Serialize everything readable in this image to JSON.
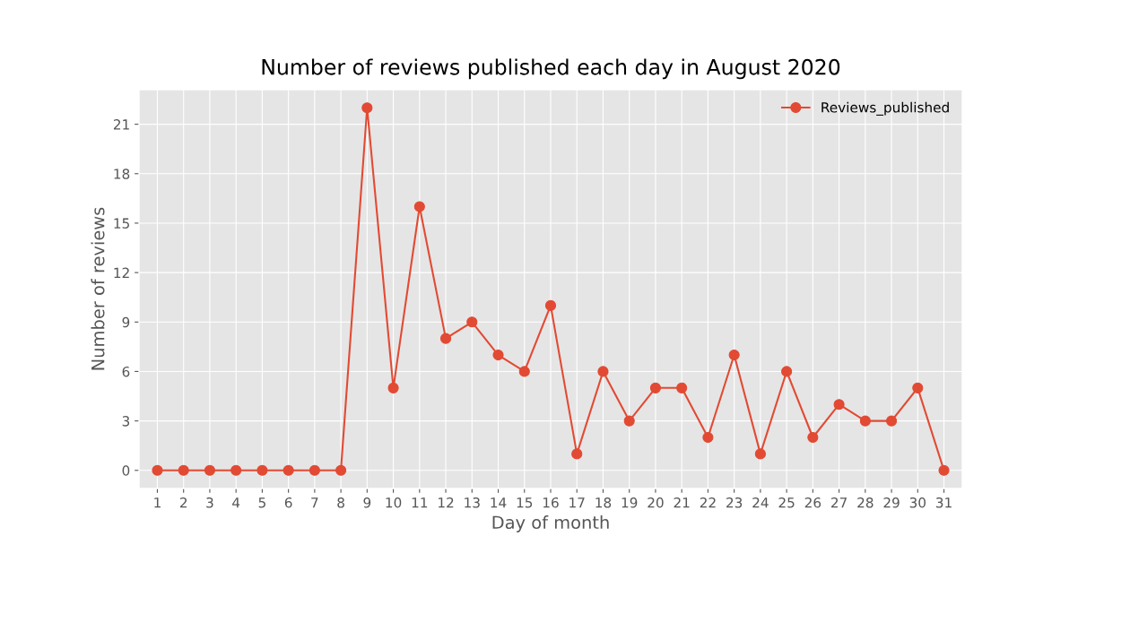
{
  "chart_data": {
    "type": "line",
    "title": "Number of reviews published each day in August 2020",
    "xlabel": "Day of month",
    "ylabel": "Number of reviews",
    "categories": [
      "1",
      "2",
      "3",
      "4",
      "5",
      "6",
      "7",
      "8",
      "9",
      "10",
      "11",
      "12",
      "13",
      "14",
      "15",
      "16",
      "17",
      "18",
      "19",
      "20",
      "21",
      "22",
      "23",
      "24",
      "25",
      "26",
      "27",
      "28",
      "29",
      "30",
      "31"
    ],
    "series": [
      {
        "name": "Reviews_published",
        "color": "#e24a33",
        "values": [
          0,
          0,
          0,
          0,
          0,
          0,
          0,
          0,
          22,
          5,
          16,
          8,
          9,
          7,
          6,
          10,
          1,
          6,
          3,
          5,
          5,
          2,
          7,
          1,
          6,
          2,
          4,
          3,
          3,
          5,
          0
        ]
      }
    ],
    "ylim": [
      -1.1,
      23.1
    ],
    "yticks": [
      0,
      3,
      6,
      9,
      12,
      15,
      18,
      21
    ],
    "grid": true,
    "legend": "top right",
    "marker": "circle",
    "line_style": "solid"
  }
}
